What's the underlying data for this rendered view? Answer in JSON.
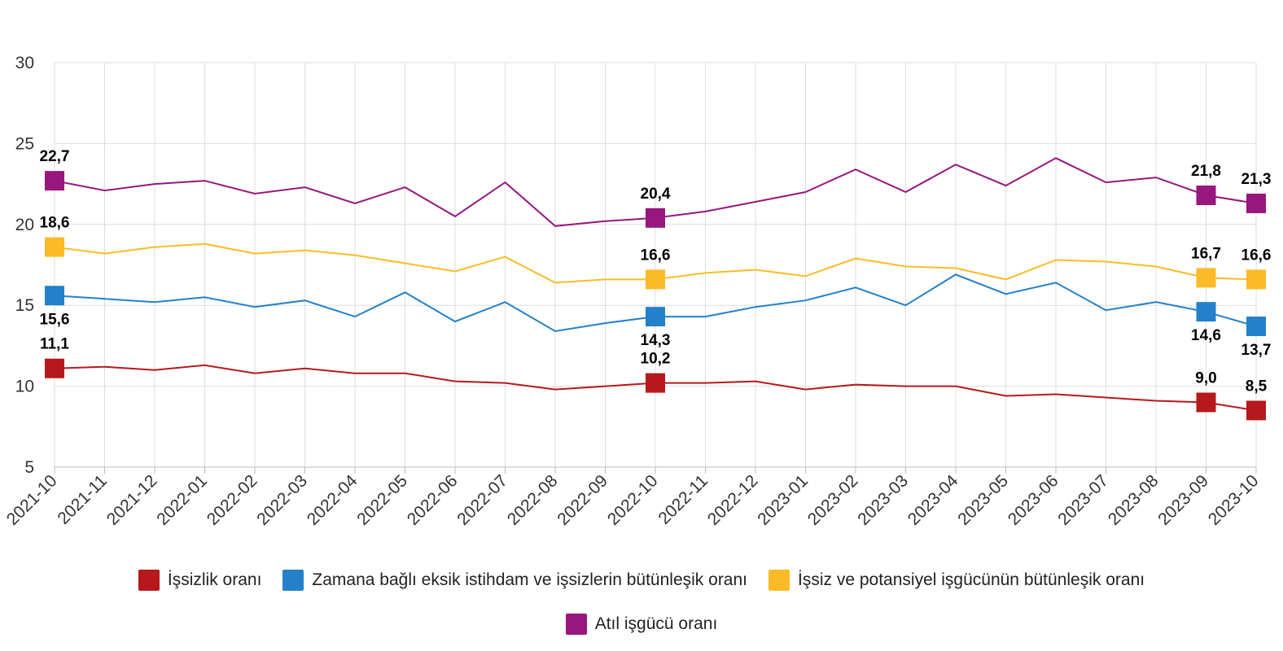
{
  "chart_data": {
    "type": "line",
    "title": "",
    "xlabel": "",
    "ylabel": "",
    "ylim": [
      5,
      30
    ],
    "yticks": [
      "5",
      "10",
      "15",
      "20",
      "25",
      "30"
    ],
    "grid": true,
    "legend_position": "bottom",
    "categories": [
      "2021-10",
      "2021-11",
      "2021-12",
      "2022-01",
      "2022-02",
      "2022-03",
      "2022-04",
      "2022-05",
      "2022-06",
      "2022-07",
      "2022-08",
      "2022-09",
      "2022-10",
      "2022-11",
      "2022-12",
      "2023-01",
      "2023-02",
      "2023-03",
      "2023-04",
      "2023-05",
      "2023-06",
      "2023-07",
      "2023-08",
      "2023-09",
      "2023-10"
    ],
    "series": [
      {
        "name": "İşsizlik oranı",
        "color": "#b5191b",
        "values": [
          11.1,
          11.2,
          11.0,
          11.3,
          10.8,
          11.1,
          10.8,
          10.8,
          10.3,
          10.2,
          9.8,
          10.0,
          10.2,
          10.2,
          10.3,
          9.8,
          10.1,
          10.0,
          10.0,
          9.4,
          9.5,
          9.3,
          9.1,
          9.0,
          8.5
        ],
        "labels": [
          {
            "i": 0,
            "text": "11,1",
            "pos": "above"
          },
          {
            "i": 12,
            "text": "10,2",
            "pos": "above"
          },
          {
            "i": 23,
            "text": "9,0",
            "pos": "above"
          },
          {
            "i": 24,
            "text": "8,5",
            "pos": "above"
          }
        ]
      },
      {
        "name": "Zamana bağlı eksik istihdam ve işsizlerin bütünleşik oranı",
        "color": "#2481c9",
        "values": [
          15.6,
          15.4,
          15.2,
          15.5,
          14.9,
          15.3,
          14.3,
          15.8,
          14.0,
          15.2,
          13.4,
          13.9,
          14.3,
          14.3,
          14.9,
          15.3,
          16.1,
          15.0,
          16.9,
          15.7,
          16.4,
          14.7,
          15.2,
          14.6,
          13.7
        ],
        "labels": [
          {
            "i": 0,
            "text": "15,6",
            "pos": "below"
          },
          {
            "i": 12,
            "text": "14,3",
            "pos": "below"
          },
          {
            "i": 23,
            "text": "14,6",
            "pos": "below"
          },
          {
            "i": 24,
            "text": "13,7",
            "pos": "below"
          }
        ]
      },
      {
        "name": "İşsiz ve potansiyel işgücünün bütünleşik oranı",
        "color": "#fbbb26",
        "values": [
          18.6,
          18.2,
          18.6,
          18.8,
          18.2,
          18.4,
          18.1,
          17.6,
          17.1,
          18.0,
          16.4,
          16.6,
          16.6,
          17.0,
          17.2,
          16.8,
          17.9,
          17.4,
          17.3,
          16.6,
          17.8,
          17.7,
          17.4,
          16.7,
          16.6
        ],
        "labels": [
          {
            "i": 0,
            "text": "18,6",
            "pos": "above"
          },
          {
            "i": 12,
            "text": "16,6",
            "pos": "above"
          },
          {
            "i": 23,
            "text": "16,7",
            "pos": "above"
          },
          {
            "i": 24,
            "text": "16,6",
            "pos": "above"
          }
        ]
      },
      {
        "name": "Atıl işgücü oranı",
        "color": "#97177e",
        "values": [
          22.7,
          22.1,
          22.5,
          22.7,
          21.9,
          22.3,
          21.3,
          22.3,
          20.5,
          22.6,
          19.9,
          20.2,
          20.4,
          20.8,
          21.4,
          22.0,
          23.4,
          22.0,
          23.7,
          22.4,
          24.1,
          22.6,
          22.9,
          21.8,
          21.3
        ],
        "labels": [
          {
            "i": 0,
            "text": "22,7",
            "pos": "above"
          },
          {
            "i": 12,
            "text": "20,4",
            "pos": "above"
          },
          {
            "i": 23,
            "text": "21,8",
            "pos": "above"
          },
          {
            "i": 24,
            "text": "21,3",
            "pos": "above"
          }
        ]
      }
    ]
  }
}
